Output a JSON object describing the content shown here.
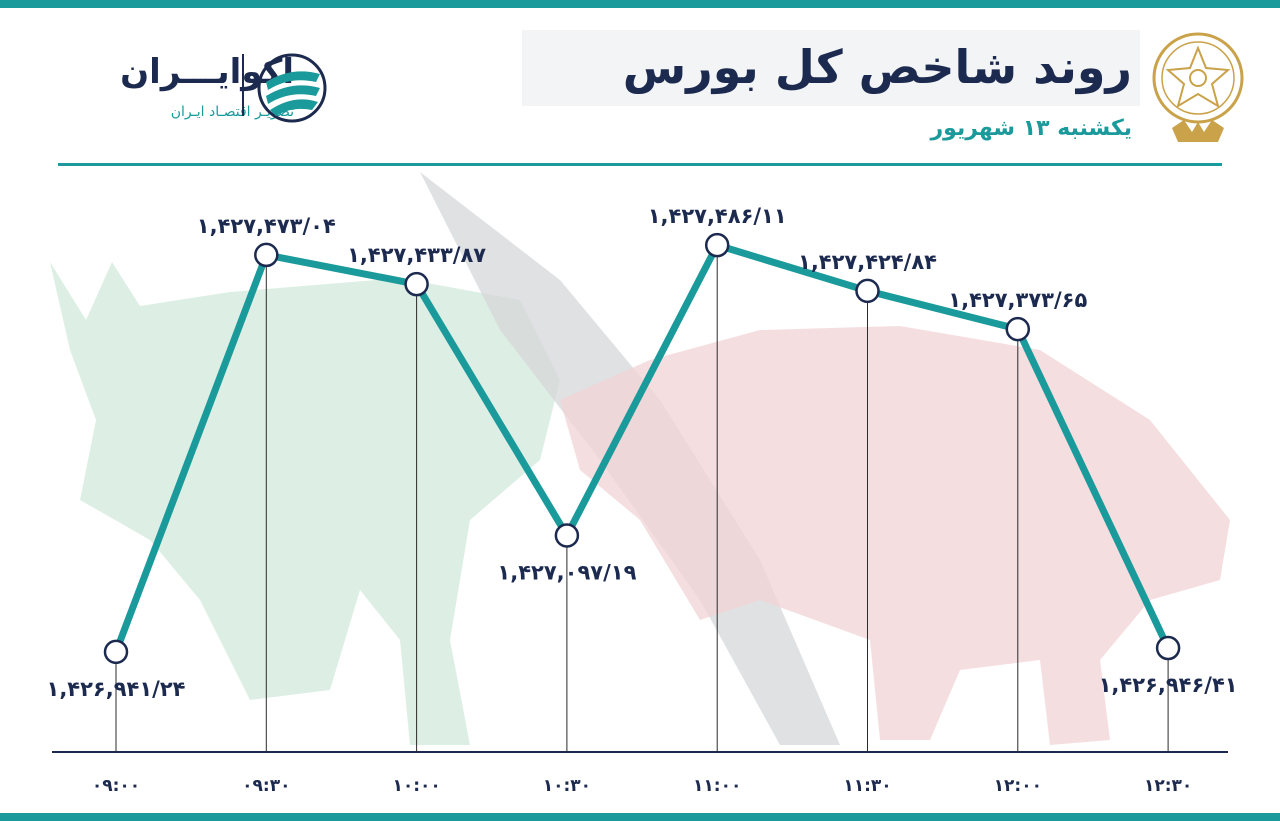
{
  "header": {
    "title": "روند شاخص کل بورس",
    "date": "یکشنبه ۱۳ شهریور"
  },
  "brand": {
    "name": "اکوایـــران",
    "tagline": "تصویـر اقتصـاد ایـران"
  },
  "colors": {
    "accent": "#1b9a9b",
    "navy": "#1c2a4f",
    "bull_watermark": "#cfe8d8",
    "bear_watermark": "#f1d3d6",
    "gold": "#c9a24a"
  },
  "chart_data": {
    "type": "line",
    "categories": [
      "۰۹:۰۰",
      "۰۹:۳۰",
      "۱۰:۰۰",
      "۱۰:۳۰",
      "۱۱:۰۰",
      "۱۱:۳۰",
      "۱۲:۰۰",
      "۱۲:۳۰"
    ],
    "values": [
      1426941.24,
      1427473.04,
      1427433.87,
      1427097.19,
      1427486.11,
      1427424.84,
      1427373.65,
      1426946.41
    ],
    "value_labels": [
      "۱,۴۲۶,۹۴۱/۲۴",
      "۱,۴۲۷,۴۷۳/۰۴",
      "۱,۴۲۷,۴۳۳/۸۷",
      "۱,۴۲۷,۰۹۷/۱۹",
      "۱,۴۲۷,۴۸۶/۱۱",
      "۱,۴۲۷,۴۲۴/۸۴",
      "۱,۴۲۷,۳۷۳/۶۵",
      "۱,۴۲۶,۹۴۶/۴۱"
    ],
    "label_position": [
      "below",
      "above",
      "above",
      "below",
      "above",
      "above",
      "above",
      "below"
    ],
    "title": "روند شاخص کل بورس",
    "xlabel": "",
    "ylabel": "",
    "ylim": [
      1426850,
      1427560
    ],
    "grid": false,
    "legend": "none"
  }
}
